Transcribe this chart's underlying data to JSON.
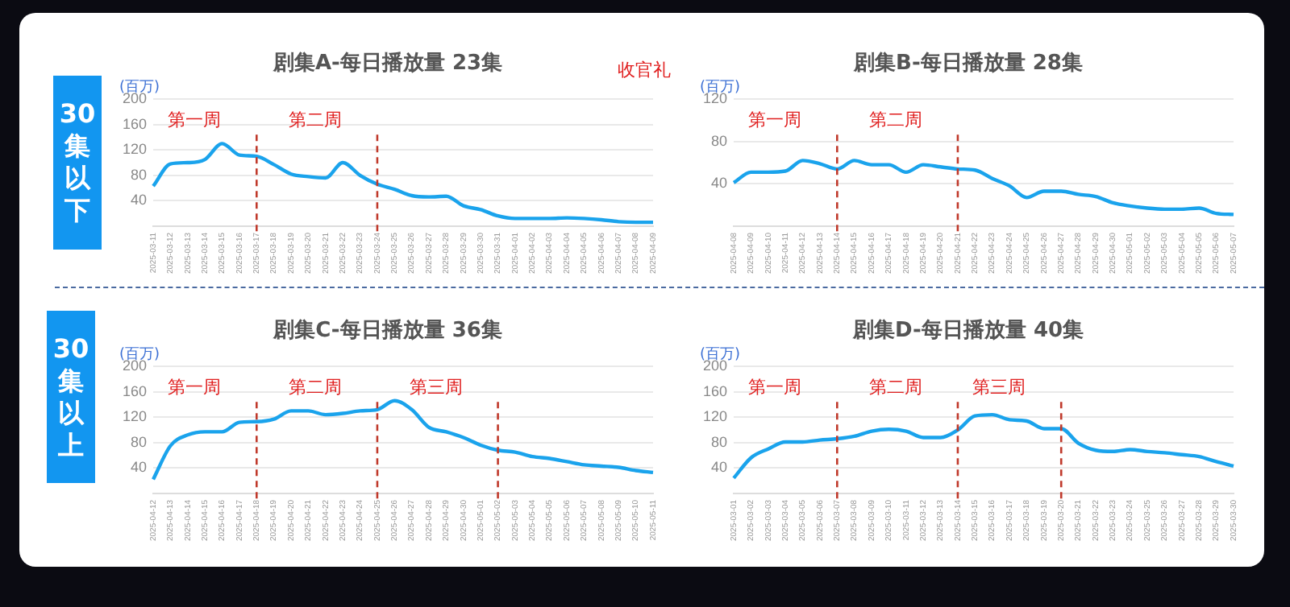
{
  "chart_data": [
    {
      "type": "line",
      "title": "剧集A-每日播放量 23集",
      "ylabel": "(百万)",
      "categories": [
        "2025-03-11",
        "2025-03-12",
        "2025-03-13",
        "2025-03-14",
        "2025-03-15",
        "2025-03-16",
        "2025-03-17",
        "2025-03-18",
        "2025-03-19",
        "2025-03-20",
        "2025-03-21",
        "2025-03-22",
        "2025-03-23",
        "2025-03-24",
        "2025-03-25",
        "2025-03-26",
        "2025-03-27",
        "2025-03-28",
        "2025-03-29",
        "2025-03-30",
        "2025-03-31",
        "2025-04-01",
        "2025-04-02",
        "2025-04-03",
        "2025-04-04",
        "2025-04-05",
        "2025-04-06",
        "2025-04-07",
        "2025-04-08",
        "2025-04-09"
      ],
      "series": [
        {
          "color": "#1aa3ec",
          "values": [
            63,
            98,
            100,
            105,
            130,
            112,
            110,
            97,
            82,
            78,
            76,
            100,
            80,
            66,
            58,
            48,
            46,
            47,
            32,
            26,
            16,
            12,
            12,
            12,
            13,
            12,
            10,
            7,
            6,
            6
          ]
        }
      ],
      "ylim": [
        0,
        200
      ],
      "yticks": [
        40,
        80,
        120,
        160,
        200
      ],
      "grid": "y",
      "legend": false,
      "marker": "none",
      "line_style": "solid",
      "ref_lines": [
        {
          "axis": "x",
          "value": "2025-03-17",
          "label": "第一周",
          "color": "#c0392b",
          "line_style": "dashed"
        },
        {
          "axis": "x",
          "value": "2025-03-24",
          "label": "第二周",
          "color": "#c0392b",
          "line_style": "dashed"
        }
      ],
      "annotations": [
        "收官礼",
        "30集以下"
      ]
    },
    {
      "type": "line",
      "title": "剧集B-每日播放量 28集",
      "ylabel": "(百万)",
      "categories": [
        "2025-04-08",
        "2025-04-09",
        "2025-04-10",
        "2025-04-11",
        "2025-04-12",
        "2025-04-13",
        "2025-04-14",
        "2025-04-15",
        "2025-04-16",
        "2025-04-17",
        "2025-04-18",
        "2025-04-19",
        "2025-04-20",
        "2025-04-21",
        "2025-04-22",
        "2025-04-23",
        "2025-04-24",
        "2025-04-25",
        "2025-04-26",
        "2025-04-27",
        "2025-04-28",
        "2025-04-29",
        "2025-04-30",
        "2025-05-01",
        "2025-05-02",
        "2025-05-03",
        "2025-05-04",
        "2025-05-05",
        "2025-05-06",
        "2025-05-07"
      ],
      "series": [
        {
          "color": "#1aa3ec",
          "values": [
            41,
            51,
            51,
            52,
            62,
            59,
            54,
            62,
            58,
            58,
            51,
            58,
            56,
            54,
            53,
            45,
            38,
            27,
            33,
            33,
            30,
            28,
            22,
            19,
            17,
            16,
            16,
            17,
            12,
            11
          ]
        }
      ],
      "ylim": [
        0,
        120
      ],
      "yticks": [
        40,
        80,
        120
      ],
      "grid": "y",
      "legend": false,
      "marker": "none",
      "line_style": "solid",
      "ref_lines": [
        {
          "axis": "x",
          "value": "2025-04-14",
          "label": "第一周",
          "color": "#c0392b",
          "line_style": "dashed"
        },
        {
          "axis": "x",
          "value": "2025-04-21",
          "label": "第二周",
          "color": "#c0392b",
          "line_style": "dashed"
        }
      ]
    },
    {
      "type": "line",
      "title": "剧集C-每日播放量 36集",
      "ylabel": "(百万)",
      "categories": [
        "2025-04-12",
        "2025-04-13",
        "2025-04-14",
        "2025-04-15",
        "2025-04-16",
        "2025-04-17",
        "2025-04-18",
        "2025-04-19",
        "2025-04-20",
        "2025-04-21",
        "2025-04-22",
        "2025-04-23",
        "2025-04-24",
        "2025-04-25",
        "2025-04-26",
        "2025-04-27",
        "2025-04-28",
        "2025-04-29",
        "2025-04-30",
        "2025-05-01",
        "2025-05-02",
        "2025-05-03",
        "2025-05-04",
        "2025-05-05",
        "2025-05-06",
        "2025-05-07",
        "2025-05-08",
        "2025-05-09",
        "2025-05-10",
        "2025-05-11"
      ],
      "series": [
        {
          "color": "#1aa3ec",
          "values": [
            22,
            75,
            92,
            97,
            97,
            112,
            113,
            117,
            130,
            130,
            124,
            126,
            130,
            132,
            146,
            132,
            104,
            97,
            88,
            76,
            68,
            65,
            58,
            55,
            50,
            45,
            43,
            41,
            36,
            33
          ]
        }
      ],
      "ylim": [
        0,
        200
      ],
      "yticks": [
        40,
        80,
        120,
        160,
        200
      ],
      "grid": "y",
      "legend": false,
      "marker": "none",
      "line_style": "solid",
      "ref_lines": [
        {
          "axis": "x",
          "value": "2025-04-18",
          "label": "第一周",
          "color": "#c0392b",
          "line_style": "dashed"
        },
        {
          "axis": "x",
          "value": "2025-04-25",
          "label": "第二周",
          "color": "#c0392b",
          "line_style": "dashed"
        },
        {
          "axis": "x",
          "value": "2025-05-02",
          "label": "第三周",
          "color": "#c0392b",
          "line_style": "dashed"
        }
      ],
      "annotations": [
        "30集以上"
      ]
    },
    {
      "type": "line",
      "title": "剧集D-每日播放量 40集",
      "ylabel": "(百万)",
      "categories": [
        "2025-03-01",
        "2025-03-02",
        "2025-03-03",
        "2025-03-04",
        "2025-03-05",
        "2025-03-06",
        "2025-03-07",
        "2025-03-08",
        "2025-03-09",
        "2025-03-10",
        "2025-03-11",
        "2025-03-12",
        "2025-03-13",
        "2025-03-14",
        "2025-03-15",
        "2025-03-16",
        "2025-03-17",
        "2025-03-18",
        "2025-03-19",
        "2025-03-20",
        "2025-03-21",
        "2025-03-22",
        "2025-03-23",
        "2025-03-24",
        "2025-03-25",
        "2025-03-26",
        "2025-03-27",
        "2025-03-28",
        "2025-03-29",
        "2025-03-30"
      ],
      "series": [
        {
          "color": "#1aa3ec",
          "values": [
            24,
            56,
            70,
            81,
            81,
            84,
            86,
            90,
            98,
            101,
            98,
            88,
            88,
            100,
            122,
            124,
            116,
            114,
            102,
            102,
            79,
            68,
            66,
            69,
            66,
            64,
            61,
            58,
            50,
            43
          ]
        }
      ],
      "ylim": [
        0,
        200
      ],
      "yticks": [
        40,
        80,
        120,
        160,
        200
      ],
      "grid": "y",
      "legend": false,
      "marker": "none",
      "line_style": "solid",
      "ref_lines": [
        {
          "axis": "x",
          "value": "2025-03-07",
          "label": "第一周",
          "color": "#c0392b",
          "line_style": "dashed"
        },
        {
          "axis": "x",
          "value": "2025-03-14",
          "label": "第二周",
          "color": "#c0392b",
          "line_style": "dashed"
        },
        {
          "axis": "x",
          "value": "2025-03-20",
          "label": "第三周",
          "color": "#c0392b",
          "line_style": "dashed"
        }
      ]
    }
  ]
}
